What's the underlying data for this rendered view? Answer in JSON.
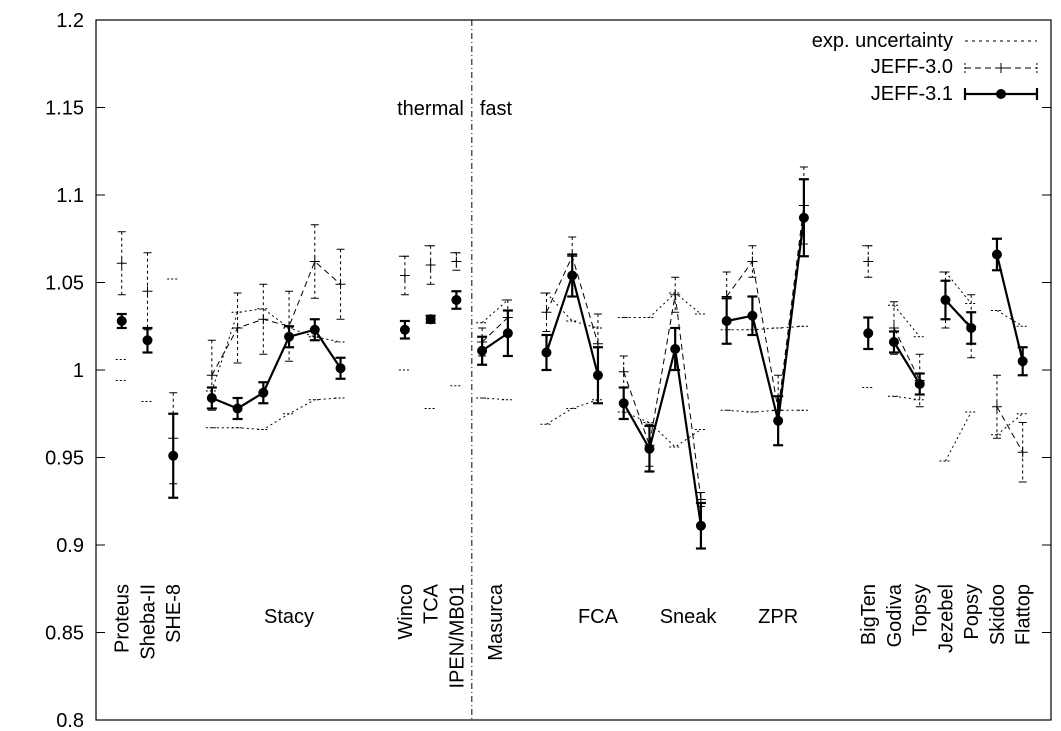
{
  "chart_data": {
    "type": "line",
    "title": "",
    "xlabel": "",
    "ylabel": "",
    "ylim": [
      0.8,
      1.2
    ],
    "yticks": [
      0.8,
      0.85,
      0.9,
      0.95,
      1,
      1.05,
      1.1,
      1.15,
      1.2
    ],
    "ytick_labels": [
      "0.8",
      "0.85",
      "0.9",
      "0.95",
      "1",
      "1.05",
      "1.1",
      "1.15",
      "1.2"
    ],
    "grid": false,
    "legend_position": "top-right",
    "region_labels": {
      "thermal": "thermal",
      "fast": "fast"
    },
    "legend": [
      {
        "key": "exp",
        "label": "exp. uncertainty"
      },
      {
        "key": "jeff30",
        "label": "JEFF-3.0"
      },
      {
        "key": "jeff31",
        "label": "JEFF-3.1"
      }
    ],
    "x": [
      1,
      2,
      3,
      4.5,
      5.5,
      6.5,
      7.5,
      8.5,
      9.5,
      10.5,
      12,
      13,
      14,
      15,
      16,
      17.5,
      18.5,
      19.5,
      20.5,
      21.5,
      22.5,
      23.5,
      24.5,
      25.5,
      26.5,
      27.5,
      28.5,
      30,
      31,
      32,
      33,
      34,
      35,
      36
    ],
    "groups": [
      {
        "label": "Proteus",
        "x": 1
      },
      {
        "label": "Sheba-II",
        "x": 2
      },
      {
        "label": "SHE-8",
        "x": 3
      },
      {
        "label": "Stacy",
        "x": 7.5
      },
      {
        "label": "Winco",
        "x": 12
      },
      {
        "label": "TCA",
        "x": 13
      },
      {
        "label": "IPEN/MB01",
        "x": 14
      },
      {
        "label": "Masurca",
        "x": 15.5
      },
      {
        "label": "FCA",
        "x": 19.5
      },
      {
        "label": "Sneak",
        "x": 23
      },
      {
        "label": "ZPR",
        "x": 26.5
      },
      {
        "label": "BigTen",
        "x": 30
      },
      {
        "label": "Godiva",
        "x": 31
      },
      {
        "label": "Topsy",
        "x": 32
      },
      {
        "label": "Jezebel",
        "x": 33
      },
      {
        "label": "Popsy",
        "x": 34
      },
      {
        "label": "Skidoo",
        "x": 35
      },
      {
        "label": "Flattop",
        "x": 36
      }
    ],
    "separator_x": 14.6,
    "xlim": [
      0,
      37.1
    ],
    "series": [
      {
        "key": "jeff31",
        "values": [
          1.028,
          1.017,
          0.951,
          0.984,
          0.978,
          0.987,
          1.019,
          1.023,
          1.001,
          null,
          1.023,
          1.029,
          1.04,
          1.011,
          1.021,
          1.01,
          1.054,
          0.997,
          0.981,
          0.955,
          1.012,
          0.911,
          1.028,
          1.031,
          0.971,
          1.087,
          null,
          1.021,
          1.016,
          0.992,
          1.04,
          1.024,
          1.066,
          1.005
        ],
        "errors": [
          0.004,
          0.007,
          0.024,
          0.006,
          0.006,
          0.006,
          0.006,
          0.006,
          0.006,
          null,
          0.005,
          0.002,
          0.005,
          0.008,
          0.013,
          0.01,
          0.012,
          0.016,
          0.009,
          0.013,
          0.012,
          0.013,
          0.013,
          0.011,
          0.014,
          0.022,
          null,
          0.009,
          0.006,
          0.006,
          0.011,
          0.009,
          0.009,
          0.008
        ],
        "segments": [
          [
            3,
            8
          ],
          [
            13,
            14
          ],
          [
            15,
            17
          ],
          [
            18,
            21
          ],
          [
            22,
            25
          ],
          [
            28,
            29
          ],
          [
            30,
            31
          ],
          [
            32,
            33
          ]
        ]
      },
      {
        "key": "jeff30",
        "values": [
          1.061,
          1.045,
          0.961,
          0.997,
          1.024,
          1.029,
          1.025,
          1.062,
          1.049,
          null,
          1.054,
          1.06,
          1.062,
          1.016,
          1.03,
          1.033,
          1.065,
          1.015,
          0.999,
          0.957,
          1.043,
          0.926,
          1.042,
          1.062,
          0.977,
          1.094,
          null,
          1.062,
          1.024,
          0.994,
          1.04,
          1.025,
          0.979,
          0.953
        ],
        "errors": [
          0.018,
          0.022,
          0.026,
          0.02,
          0.02,
          0.02,
          0.02,
          0.021,
          0.02,
          null,
          0.011,
          0.011,
          0.005,
          0.008,
          0.01,
          0.011,
          0.011,
          0.017,
          0.009,
          0.012,
          0.01,
          0.004,
          0.014,
          0.009,
          0.02,
          0.022,
          null,
          0.009,
          0.015,
          0.015,
          0.016,
          0.018,
          0.018,
          0.017
        ],
        "segments": [
          [
            3,
            8
          ],
          [
            13,
            14
          ],
          [
            15,
            17
          ],
          [
            18,
            21
          ],
          [
            22,
            25
          ],
          [
            28,
            29
          ],
          [
            30,
            31
          ],
          [
            32,
            33
          ]
        ]
      },
      {
        "key": "exp",
        "upper": [
          1.006,
          0.982,
          1.052,
          0.988,
          1.033,
          1.035,
          1.024,
          1.019,
          1.016,
          null,
          1.065,
          1.071,
          1.067,
          1.027,
          1.04,
          1.044,
          1.028,
          1.024,
          1.03,
          1.03,
          1.044,
          1.032,
          1.023,
          1.023,
          1.024,
          1.025,
          null,
          1.071,
          1.037,
          1.019,
          1.056,
          1.038,
          1.034,
          1.025
        ],
        "lower": [
          0.994,
          null,
          null,
          0.967,
          0.967,
          0.966,
          0.975,
          0.983,
          0.984,
          null,
          1.0,
          0.978,
          0.991,
          0.984,
          0.983,
          0.969,
          0.978,
          0.983,
          0.976,
          0.97,
          0.956,
          0.966,
          0.977,
          0.976,
          0.977,
          0.977,
          null,
          0.99,
          0.985,
          0.983,
          0.948,
          0.976,
          0.963,
          0.975
        ],
        "segments": [
          [
            3,
            8
          ],
          [
            13,
            14
          ],
          [
            15,
            17
          ],
          [
            18,
            21
          ],
          [
            22,
            25
          ],
          [
            28,
            29
          ],
          [
            30,
            31
          ],
          [
            32,
            33
          ]
        ]
      }
    ]
  }
}
